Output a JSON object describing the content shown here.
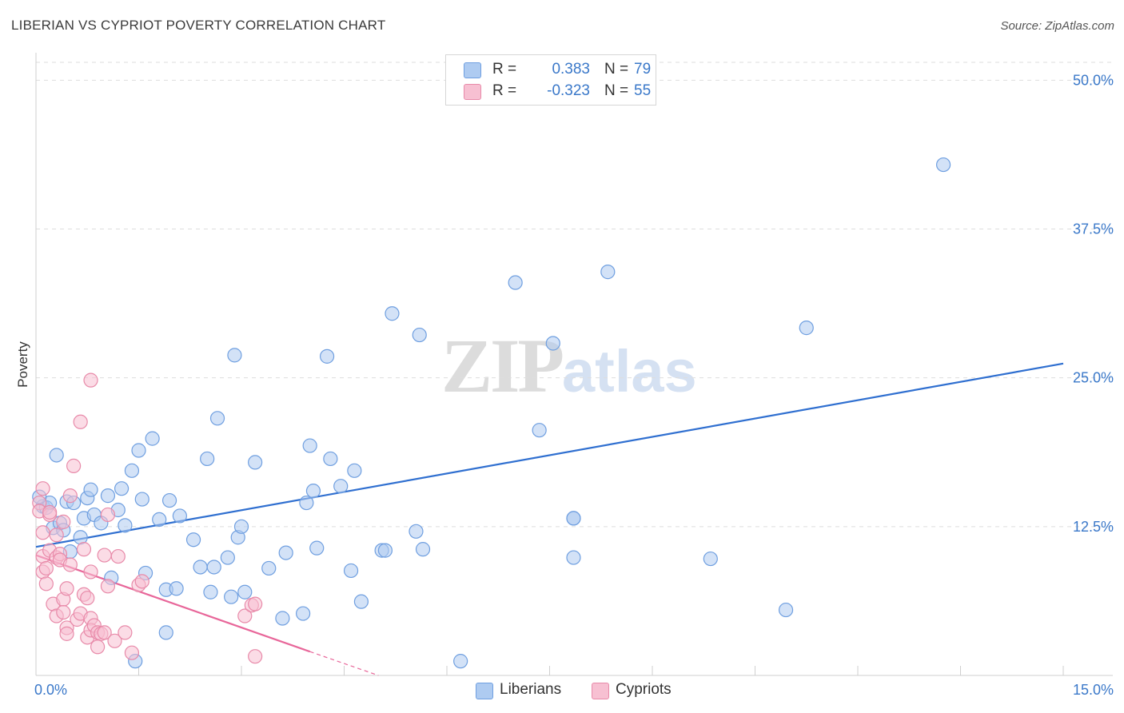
{
  "title": "LIBERIAN VS CYPRIOT POVERTY CORRELATION CHART",
  "source": "Source: ZipAtlas.com",
  "watermark": {
    "zip": "ZIP",
    "atlas": "atlas"
  },
  "legend": {
    "rows": [
      {
        "r_label": "R =",
        "r_value": "0.383",
        "n_label": "N =",
        "n_value": "79",
        "color": "#aecbf1",
        "border": "#6f9fe0"
      },
      {
        "r_label": "R =",
        "r_value": "-0.323",
        "n_label": "N =",
        "n_value": "55",
        "color": "#f7c0d2",
        "border": "#e88aa9"
      }
    ]
  },
  "bottom_legend": [
    {
      "label": "Liberians",
      "color": "#aecbf1",
      "border": "#6f9fe0"
    },
    {
      "label": "Cypriots",
      "color": "#f7c0d2",
      "border": "#e88aa9"
    }
  ],
  "chart_data": {
    "type": "scatter",
    "title": "LIBERIAN VS CYPRIOT POVERTY CORRELATION CHART",
    "xlabel": "",
    "ylabel": "Poverty",
    "xlim": [
      0,
      15
    ],
    "ylim": [
      0,
      51.5
    ],
    "x_ticks": [
      0,
      15
    ],
    "x_tick_labels": [
      "0.0%",
      "15.0%"
    ],
    "y_ticks": [
      12.5,
      25,
      37.5,
      50
    ],
    "y_tick_labels": [
      "12.5%",
      "25.0%",
      "37.5%",
      "50.0%"
    ],
    "colors": {
      "liberians": "#3a78c9",
      "cypriots": "#e8679a"
    },
    "series": [
      {
        "name": "Liberians",
        "color": "#6f9fe0",
        "fill": "#aecbf1",
        "trend": {
          "x0": 0.0,
          "y0": 10.8,
          "x1": 15.0,
          "y1": 26.2
        },
        "points": [
          [
            0.1,
            14.2
          ],
          [
            0.15,
            14.1
          ],
          [
            0.2,
            14.5
          ],
          [
            0.25,
            12.4
          ],
          [
            0.3,
            18.5
          ],
          [
            0.35,
            12.8
          ],
          [
            0.4,
            12.2
          ],
          [
            0.45,
            14.6
          ],
          [
            0.5,
            10.4
          ],
          [
            0.55,
            14.5
          ],
          [
            0.65,
            11.6
          ],
          [
            0.7,
            13.2
          ],
          [
            0.75,
            14.9
          ],
          [
            0.8,
            15.6
          ],
          [
            0.85,
            13.5
          ],
          [
            0.95,
            12.8
          ],
          [
            1.05,
            15.1
          ],
          [
            1.1,
            8.2
          ],
          [
            1.2,
            13.9
          ],
          [
            1.25,
            15.7
          ],
          [
            1.3,
            12.6
          ],
          [
            1.4,
            17.2
          ],
          [
            1.45,
            1.2
          ],
          [
            1.5,
            18.9
          ],
          [
            1.55,
            14.8
          ],
          [
            1.6,
            8.6
          ],
          [
            1.7,
            19.9
          ],
          [
            1.8,
            13.1
          ],
          [
            1.9,
            7.2
          ],
          [
            1.95,
            14.7
          ],
          [
            1.9,
            3.6
          ],
          [
            2.05,
            7.3
          ],
          [
            2.1,
            13.4
          ],
          [
            2.3,
            11.4
          ],
          [
            2.4,
            9.1
          ],
          [
            2.5,
            18.2
          ],
          [
            2.55,
            7.0
          ],
          [
            2.6,
            9.1
          ],
          [
            2.65,
            21.6
          ],
          [
            2.8,
            9.9
          ],
          [
            2.85,
            6.6
          ],
          [
            2.9,
            26.9
          ],
          [
            2.95,
            11.6
          ],
          [
            3.0,
            12.5
          ],
          [
            3.05,
            7.0
          ],
          [
            3.2,
            17.9
          ],
          [
            3.4,
            9.0
          ],
          [
            3.6,
            4.8
          ],
          [
            3.65,
            10.3
          ],
          [
            3.9,
            5.2
          ],
          [
            3.95,
            14.5
          ],
          [
            4.0,
            19.3
          ],
          [
            4.05,
            15.5
          ],
          [
            4.1,
            10.7
          ],
          [
            4.25,
            26.8
          ],
          [
            4.3,
            18.2
          ],
          [
            4.45,
            15.9
          ],
          [
            4.6,
            8.8
          ],
          [
            4.65,
            17.2
          ],
          [
            4.75,
            6.2
          ],
          [
            5.05,
            10.5
          ],
          [
            5.1,
            10.5
          ],
          [
            5.2,
            30.4
          ],
          [
            5.55,
            12.1
          ],
          [
            5.6,
            28.6
          ],
          [
            5.65,
            10.6
          ],
          [
            6.2,
            1.2
          ],
          [
            7.0,
            33.0
          ],
          [
            7.35,
            20.6
          ],
          [
            7.55,
            27.9
          ],
          [
            7.85,
            13.2
          ],
          [
            7.85,
            13.2
          ],
          [
            7.85,
            9.9
          ],
          [
            8.35,
            33.9
          ],
          [
            9.85,
            9.8
          ],
          [
            10.95,
            5.5
          ],
          [
            11.25,
            29.2
          ],
          [
            13.25,
            42.9
          ],
          [
            0.05,
            15.0
          ]
        ]
      },
      {
        "name": "Cypriots",
        "color": "#e88aa9",
        "fill": "#f7c0d2",
        "trend": {
          "x0": 0.0,
          "y0": 10.1,
          "x1": 4.0,
          "y1": 2.0,
          "dash_to_x": 5.0,
          "dash_to_y": 0.0
        },
        "points": [
          [
            0.05,
            14.5
          ],
          [
            0.05,
            13.8
          ],
          [
            0.1,
            12.0
          ],
          [
            0.1,
            10.0
          ],
          [
            0.1,
            8.7
          ],
          [
            0.15,
            9.0
          ],
          [
            0.15,
            7.7
          ],
          [
            0.2,
            13.5
          ],
          [
            0.2,
            10.5
          ],
          [
            0.25,
            6.0
          ],
          [
            0.3,
            5.0
          ],
          [
            0.3,
            11.8
          ],
          [
            0.3,
            9.9
          ],
          [
            0.35,
            10.2
          ],
          [
            0.35,
            9.7
          ],
          [
            0.4,
            6.4
          ],
          [
            0.4,
            5.3
          ],
          [
            0.45,
            4.0
          ],
          [
            0.45,
            3.5
          ],
          [
            0.45,
            7.3
          ],
          [
            0.5,
            9.3
          ],
          [
            0.5,
            15.1
          ],
          [
            0.55,
            17.6
          ],
          [
            0.6,
            4.7
          ],
          [
            0.65,
            5.2
          ],
          [
            0.7,
            10.6
          ],
          [
            0.7,
            6.8
          ],
          [
            0.75,
            3.2
          ],
          [
            0.75,
            6.5
          ],
          [
            0.8,
            4.8
          ],
          [
            0.8,
            3.8
          ],
          [
            0.8,
            8.7
          ],
          [
            0.85,
            4.2
          ],
          [
            0.9,
            3.6
          ],
          [
            0.9,
            2.4
          ],
          [
            0.95,
            3.5
          ],
          [
            1.0,
            3.6
          ],
          [
            1.0,
            10.1
          ],
          [
            1.05,
            13.5
          ],
          [
            1.05,
            7.5
          ],
          [
            1.15,
            2.9
          ],
          [
            1.2,
            10.0
          ],
          [
            1.3,
            3.6
          ],
          [
            1.4,
            1.9
          ],
          [
            1.5,
            7.6
          ],
          [
            1.55,
            7.9
          ],
          [
            3.05,
            5.0
          ],
          [
            3.15,
            5.9
          ],
          [
            3.2,
            6.0
          ],
          [
            3.2,
            1.6
          ],
          [
            0.65,
            21.3
          ],
          [
            0.8,
            24.8
          ],
          [
            0.1,
            15.7
          ],
          [
            0.4,
            12.9
          ],
          [
            0.2,
            13.7
          ]
        ]
      }
    ]
  }
}
